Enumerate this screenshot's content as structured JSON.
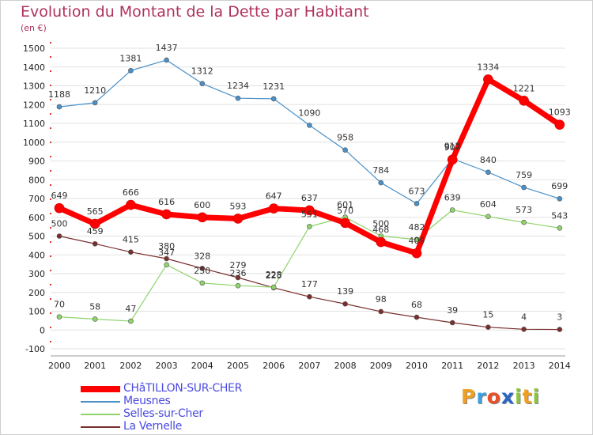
{
  "chart_data": {
    "type": "line",
    "title": "Evolution du Montant de la Dette par Habitant",
    "ylabel": "(en €)",
    "ylim": [
      -100,
      1500
    ],
    "yticks": [
      -100,
      0,
      100,
      200,
      300,
      400,
      500,
      600,
      700,
      800,
      900,
      1000,
      1100,
      1200,
      1300,
      1400,
      1500
    ],
    "categories": [
      "2000",
      "2001",
      "2002",
      "2003",
      "2004",
      "2005",
      "2006",
      "2007",
      "2008",
      "2009",
      "2010",
      "2011",
      "2012",
      "2013",
      "2014"
    ],
    "grid": "horizontal",
    "legend_position": "bottom-left",
    "series": [
      {
        "name": "CHâTILLON-SUR-CHER",
        "color": "#ff0000",
        "values": [
          649,
          565,
          666,
          616,
          600,
          593,
          647,
          637,
          570,
          468,
          409,
          907,
          1334,
          1221,
          1093
        ]
      },
      {
        "name": "Meusnes",
        "color": "#4a90c8",
        "values": [
          1188,
          1210,
          1381,
          1437,
          1312,
          1234,
          1231,
          1090,
          958,
          784,
          673,
          912,
          840,
          759,
          699
        ]
      },
      {
        "name": "Selles-sur-Cher",
        "color": "#8fd46a",
        "values": [
          70,
          58,
          47,
          347,
          250,
          236,
          228,
          551,
          601,
          500,
          482,
          639,
          604,
          573,
          543
        ]
      },
      {
        "name": "La Vernelle",
        "color": "#7a2e2e",
        "values": [
          500,
          459,
          415,
          380,
          328,
          279,
          225,
          177,
          139,
          98,
          68,
          39,
          15,
          4,
          3
        ]
      }
    ]
  },
  "logo": {
    "text": "Proxiti",
    "letters": [
      "P",
      "r",
      "o",
      "x",
      "i",
      "t",
      "i"
    ],
    "colors": [
      "#f0a020",
      "#3aa0e0",
      "#e8502a",
      "#2a66c8",
      "#8cc63e",
      "#f0a020",
      "#8cc63e"
    ]
  }
}
